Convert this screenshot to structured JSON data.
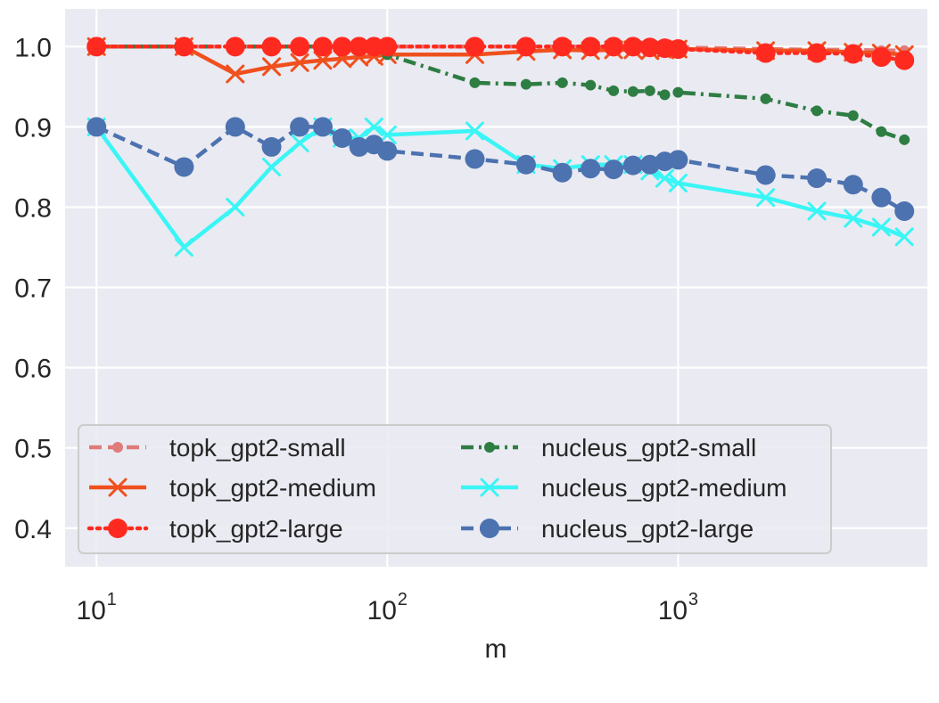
{
  "chart_data": {
    "type": "line",
    "title": "",
    "xlabel": "m",
    "ylabel": "",
    "xscale": "log",
    "xlim": [
      7.8,
      7200
    ],
    "ylim": [
      0.352,
      1.047
    ],
    "yticks": [
      0.4,
      0.5,
      0.6,
      0.7,
      0.8,
      0.9,
      1.0
    ],
    "ytick_labels": [
      "0.4",
      "0.5",
      "0.6",
      "0.7",
      "0.8",
      "0.9",
      "1.0"
    ],
    "xticks": [
      10,
      100,
      1000
    ],
    "xtick_labels": [
      {
        "base": "10",
        "exp": "1"
      },
      {
        "base": "10",
        "exp": "2"
      },
      {
        "base": "10",
        "exp": "3"
      }
    ],
    "grid": true,
    "legend": "lower-left, 2 columns",
    "series": [
      {
        "name": "topk_gpt2-small",
        "color": "#e07b7b",
        "line": "dashed",
        "marker": "small-circle",
        "points": [
          [
            10,
            1.0
          ],
          [
            20,
            1.0
          ],
          [
            30,
            1.0
          ],
          [
            40,
            1.0
          ],
          [
            50,
            1.0
          ],
          [
            60,
            1.0
          ],
          [
            70,
            1.0
          ],
          [
            80,
            1.0
          ],
          [
            90,
            1.0
          ],
          [
            100,
            1.0
          ],
          [
            200,
            1.0
          ],
          [
            300,
            1.0
          ],
          [
            400,
            1.0
          ],
          [
            500,
            1.0
          ],
          [
            600,
            0.999
          ],
          [
            700,
            0.999
          ],
          [
            800,
            0.999
          ],
          [
            900,
            0.999
          ],
          [
            1000,
            0.999
          ],
          [
            2000,
            0.997
          ],
          [
            3000,
            0.996
          ],
          [
            4000,
            0.996
          ],
          [
            5000,
            0.995
          ],
          [
            6000,
            0.995
          ]
        ]
      },
      {
        "name": "topk_gpt2-medium",
        "color": "#f0501e",
        "line": "solid",
        "marker": "x",
        "points": [
          [
            10,
            1.0
          ],
          [
            20,
            1.0
          ],
          [
            30,
            0.966
          ],
          [
            40,
            0.975
          ],
          [
            50,
            0.98
          ],
          [
            60,
            0.983
          ],
          [
            70,
            0.985
          ],
          [
            80,
            0.987
          ],
          [
            90,
            0.988
          ],
          [
            100,
            0.99
          ],
          [
            200,
            0.99
          ],
          [
            300,
            0.994
          ],
          [
            400,
            0.996
          ],
          [
            500,
            0.995
          ],
          [
            600,
            0.996
          ],
          [
            700,
            0.996
          ],
          [
            800,
            0.995
          ],
          [
            900,
            0.996
          ],
          [
            1000,
            0.997
          ],
          [
            2000,
            0.995
          ],
          [
            3000,
            0.995
          ],
          [
            4000,
            0.993
          ],
          [
            5000,
            0.992
          ],
          [
            6000,
            0.99
          ]
        ]
      },
      {
        "name": "topk_gpt2-large",
        "color": "#ff2a1f",
        "line": "dotted",
        "marker": "circle",
        "points": [
          [
            10,
            1.0
          ],
          [
            20,
            1.0
          ],
          [
            30,
            1.0
          ],
          [
            40,
            1.0
          ],
          [
            50,
            1.0
          ],
          [
            60,
            1.0
          ],
          [
            70,
            1.0
          ],
          [
            80,
            1.0
          ],
          [
            90,
            1.0
          ],
          [
            100,
            1.0
          ],
          [
            200,
            1.0
          ],
          [
            300,
            1.0
          ],
          [
            400,
            1.0
          ],
          [
            500,
            1.0
          ],
          [
            600,
            1.0
          ],
          [
            700,
            1.0
          ],
          [
            800,
            0.999
          ],
          [
            900,
            0.998
          ],
          [
            1000,
            0.997
          ],
          [
            2000,
            0.992
          ],
          [
            3000,
            0.992
          ],
          [
            4000,
            0.991
          ],
          [
            5000,
            0.987
          ],
          [
            6000,
            0.983
          ]
        ]
      },
      {
        "name": "nucleus_gpt2-small",
        "color": "#2e7d43",
        "line": "dashdot",
        "marker": "small-circle",
        "points": [
          [
            10,
            1.0
          ],
          [
            20,
            1.0
          ],
          [
            30,
            1.0
          ],
          [
            40,
            1.0
          ],
          [
            50,
            1.0
          ],
          [
            60,
            1.0
          ],
          [
            70,
            1.0
          ],
          [
            80,
            1.0
          ],
          [
            90,
            1.0
          ],
          [
            100,
            0.99
          ],
          [
            200,
            0.955
          ],
          [
            300,
            0.953
          ],
          [
            400,
            0.955
          ],
          [
            500,
            0.952
          ],
          [
            600,
            0.945
          ],
          [
            700,
            0.944
          ],
          [
            800,
            0.945
          ],
          [
            900,
            0.94
          ],
          [
            1000,
            0.943
          ],
          [
            2000,
            0.935
          ],
          [
            3000,
            0.92
          ],
          [
            4000,
            0.914
          ],
          [
            5000,
            0.894
          ],
          [
            6000,
            0.884
          ]
        ]
      },
      {
        "name": "nucleus_gpt2-medium",
        "color": "#3af5f5",
        "line": "solid",
        "marker": "x",
        "points": [
          [
            10,
            0.9
          ],
          [
            20,
            0.75
          ],
          [
            30,
            0.8
          ],
          [
            40,
            0.85
          ],
          [
            50,
            0.88
          ],
          [
            60,
            0.9
          ],
          [
            70,
            0.886
          ],
          [
            80,
            0.886
          ],
          [
            90,
            0.9
          ],
          [
            100,
            0.89
          ],
          [
            200,
            0.895
          ],
          [
            300,
            0.853
          ],
          [
            400,
            0.848
          ],
          [
            500,
            0.853
          ],
          [
            600,
            0.853
          ],
          [
            700,
            0.853
          ],
          [
            800,
            0.845
          ],
          [
            900,
            0.836
          ],
          [
            1000,
            0.83
          ],
          [
            2000,
            0.812
          ],
          [
            3000,
            0.795
          ],
          [
            4000,
            0.786
          ],
          [
            5000,
            0.775
          ],
          [
            6000,
            0.763
          ]
        ]
      },
      {
        "name": "nucleus_gpt2-large",
        "color": "#4c72b0",
        "line": "dashed",
        "marker": "circle",
        "points": [
          [
            10,
            0.9
          ],
          [
            20,
            0.85
          ],
          [
            30,
            0.9
          ],
          [
            40,
            0.875
          ],
          [
            50,
            0.9
          ],
          [
            60,
            0.9
          ],
          [
            70,
            0.886
          ],
          [
            80,
            0.875
          ],
          [
            90,
            0.878
          ],
          [
            100,
            0.87
          ],
          [
            200,
            0.86
          ],
          [
            300,
            0.853
          ],
          [
            400,
            0.843
          ],
          [
            500,
            0.848
          ],
          [
            600,
            0.847
          ],
          [
            700,
            0.852
          ],
          [
            800,
            0.853
          ],
          [
            900,
            0.857
          ],
          [
            1000,
            0.859
          ],
          [
            2000,
            0.84
          ],
          [
            3000,
            0.836
          ],
          [
            4000,
            0.828
          ],
          [
            5000,
            0.812
          ],
          [
            6000,
            0.795
          ]
        ]
      }
    ]
  }
}
